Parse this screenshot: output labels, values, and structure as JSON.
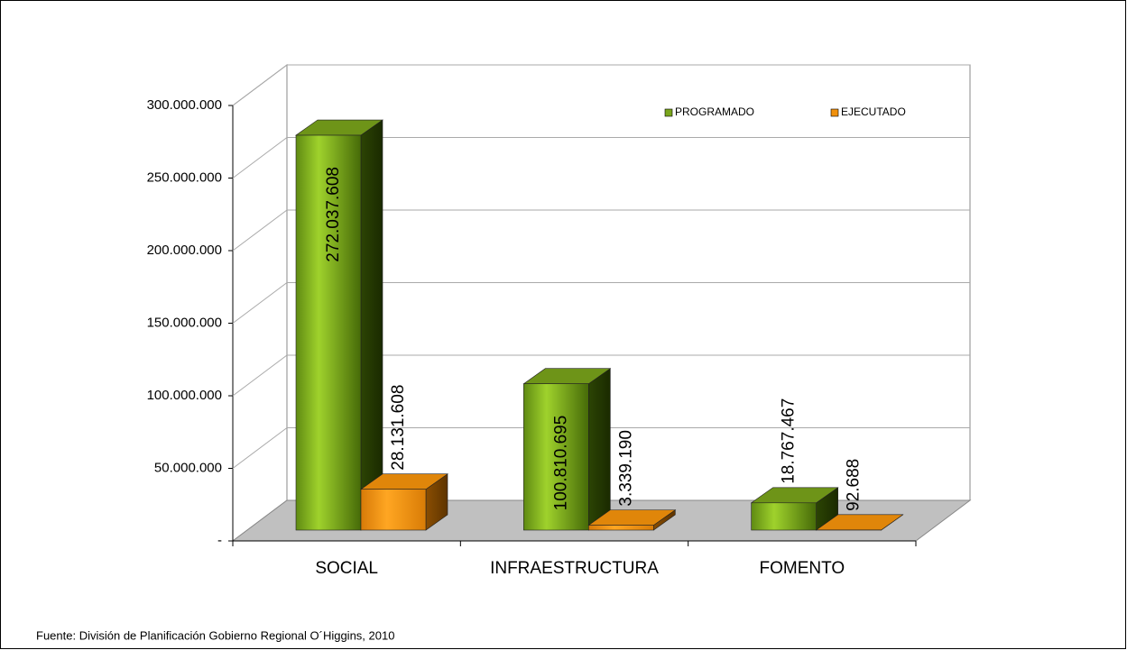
{
  "chart_data": {
    "type": "bar3d",
    "categories": [
      "SOCIAL",
      "INFRAESTRUCTURA",
      "FOMENTO"
    ],
    "series": [
      {
        "name": "PROGRAMADO",
        "color": "#7aa61c",
        "values": [
          272037608,
          100810695,
          18767467
        ],
        "value_labels": [
          "272.037.608",
          "100.810.695",
          "18.767.467"
        ]
      },
      {
        "name": "EJECUTADO",
        "color": "#f0900c",
        "values": [
          28131608,
          3339190,
          92688
        ],
        "value_labels": [
          "28.131.608",
          "3.339.190",
          "92.688"
        ]
      }
    ],
    "ylim": [
      0,
      300000000
    ],
    "yticks": [
      {
        "value": 0,
        "label": "-"
      },
      {
        "value": 50000000,
        "label": "50.000.000"
      },
      {
        "value": 100000000,
        "label": "100.000.000"
      },
      {
        "value": 150000000,
        "label": "150.000.000"
      },
      {
        "value": 200000000,
        "label": "200.000.000"
      },
      {
        "value": 250000000,
        "label": "250.000.000"
      },
      {
        "value": 300000000,
        "label": "300.000.000"
      }
    ],
    "grid": true,
    "legend": "top-right",
    "source": "Fuente: División de Planificación Gobierno Regional O´Higgins, 2010"
  }
}
